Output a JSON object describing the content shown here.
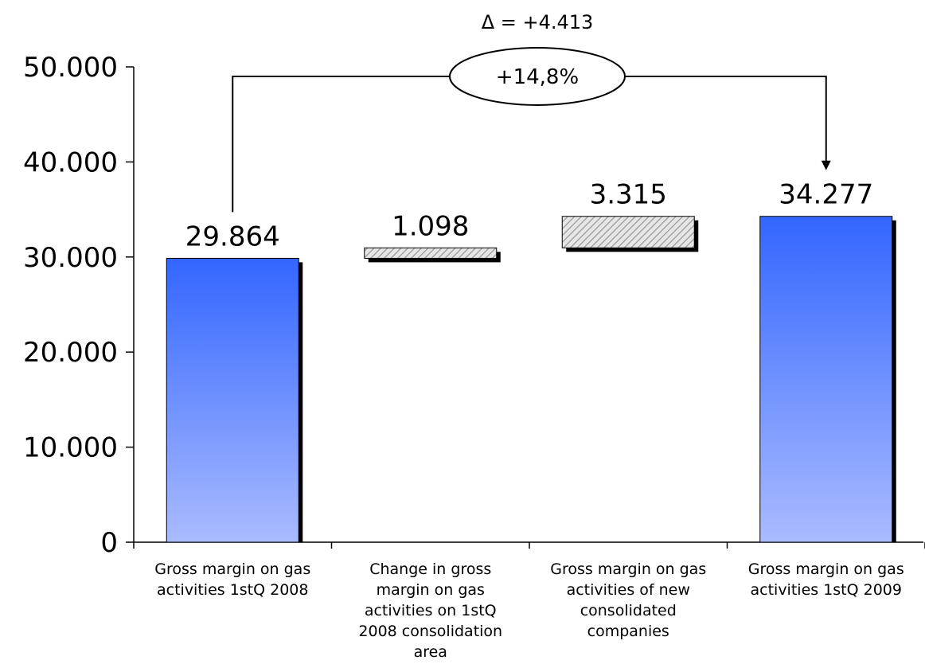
{
  "chart_data": {
    "type": "bar",
    "subtype": "waterfall",
    "categories": [
      "Gross margin on gas activities 1stQ 2008",
      "Change in gross margin on gas activities on 1stQ 2008 consolidation area",
      "Gross margin on gas activities of new consolidated companies",
      "Gross margin on gas activities 1stQ 2009"
    ],
    "category_lines": [
      [
        "Gross margin on gas",
        "activities 1stQ 2008"
      ],
      [
        "Change in gross",
        "margin on gas",
        "activities on 1stQ",
        "2008 consolidation",
        "area"
      ],
      [
        "Gross margin on gas",
        "activities of new",
        "consolidated",
        "companies"
      ],
      [
        "Gross margin on gas",
        "activities 1stQ 2009"
      ]
    ],
    "bars": [
      {
        "kind": "total",
        "start": 0,
        "end": 29864,
        "label": "29.864"
      },
      {
        "kind": "delta",
        "start": 29864,
        "end": 30962,
        "label": "1.098"
      },
      {
        "kind": "delta",
        "start": 30962,
        "end": 34277,
        "label": "3.315"
      },
      {
        "kind": "total",
        "start": 0,
        "end": 34277,
        "label": "34.277"
      }
    ],
    "ylim": [
      0,
      50000
    ],
    "y_ticks": [
      0,
      10000,
      20000,
      30000,
      40000,
      50000
    ],
    "y_tick_labels": [
      "0",
      "10.000",
      "20.000",
      "30.000",
      "40.000",
      "50.000"
    ],
    "annotation_delta": "Δ = +4.413",
    "annotation_pct": "+14,8%",
    "colors": {
      "total_top": "#3366ff",
      "total_bottom": "#aabbff",
      "delta_hatch": "#999999",
      "shadow": "#000000"
    }
  }
}
